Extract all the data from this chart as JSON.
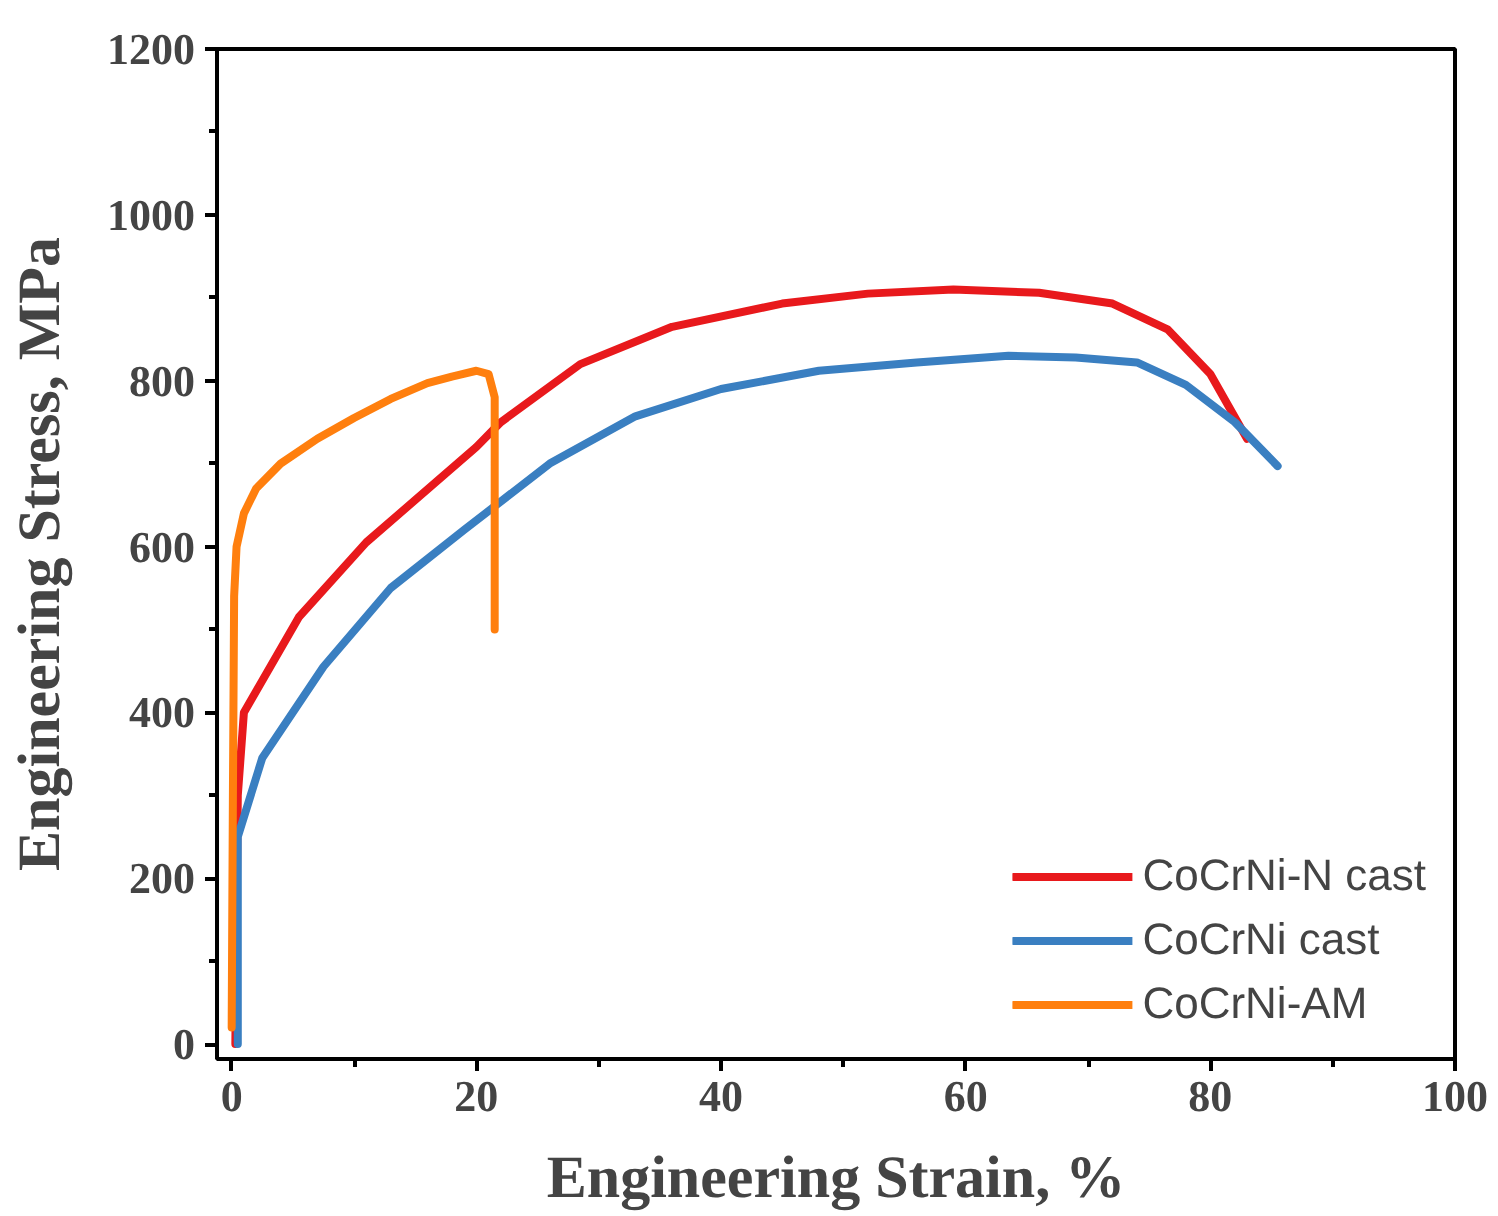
{
  "chart_data": {
    "type": "line",
    "xlabel": "Engineering Strain, %",
    "ylabel": "Engineering Stress, MPa",
    "xlim": [
      -1.2,
      100
    ],
    "ylim": [
      -18,
      1200
    ],
    "xticks": [
      0,
      {
        "value": 10,
        "label": null
      },
      20,
      {
        "value": 30,
        "label": null
      },
      40,
      {
        "value": 50,
        "label": null
      },
      60,
      {
        "value": 70,
        "label": null
      },
      80,
      {
        "value": 90,
        "label": null
      },
      100
    ],
    "yticks": [
      0,
      {
        "value": 100,
        "label": null
      },
      200,
      {
        "value": 300,
        "label": null
      },
      400,
      {
        "value": 500,
        "label": null
      },
      600,
      {
        "value": 700,
        "label": null
      },
      800,
      {
        "value": 900,
        "label": null
      },
      1000,
      {
        "value": 1100,
        "label": null
      },
      1200
    ],
    "grid": false,
    "legend": "bottom right",
    "line_style": "solid",
    "series": [
      {
        "name": "CoCrNi-N cast",
        "color": "#e8191c",
        "x": [
          0.3,
          0.5,
          1,
          5.5,
          11,
          20,
          22,
          28.5,
          36,
          45,
          52,
          59,
          66,
          72,
          76.5,
          80,
          83
        ],
        "values": [
          0,
          300,
          400,
          515,
          605,
          720,
          750,
          820,
          865,
          893,
          905,
          910,
          906,
          893,
          862,
          808,
          730
        ]
      },
      {
        "name": "CoCrNi cast",
        "color": "#3a7fc1",
        "x": [
          0.5,
          0.5,
          2.5,
          7.5,
          13,
          19,
          26,
          33,
          40,
          48,
          56,
          63.5,
          69,
          74,
          78,
          82,
          85.5
        ],
        "values": [
          0,
          250,
          345,
          455,
          550,
          620,
          700,
          757,
          790,
          812,
          822,
          830,
          828,
          822,
          795,
          750,
          697
        ]
      },
      {
        "name": "CoCrNi-AM",
        "color": "#ff7f0e",
        "x": [
          0,
          0.1,
          0.2,
          0.4,
          1,
          2,
          4,
          7,
          10,
          13,
          16,
          18,
          20,
          21,
          21.5,
          21.5,
          21.5
        ],
        "values": [
          20,
          300,
          540,
          600,
          640,
          670,
          700,
          730,
          755,
          778,
          797,
          805,
          812,
          808,
          780,
          600,
          500
        ]
      }
    ]
  }
}
